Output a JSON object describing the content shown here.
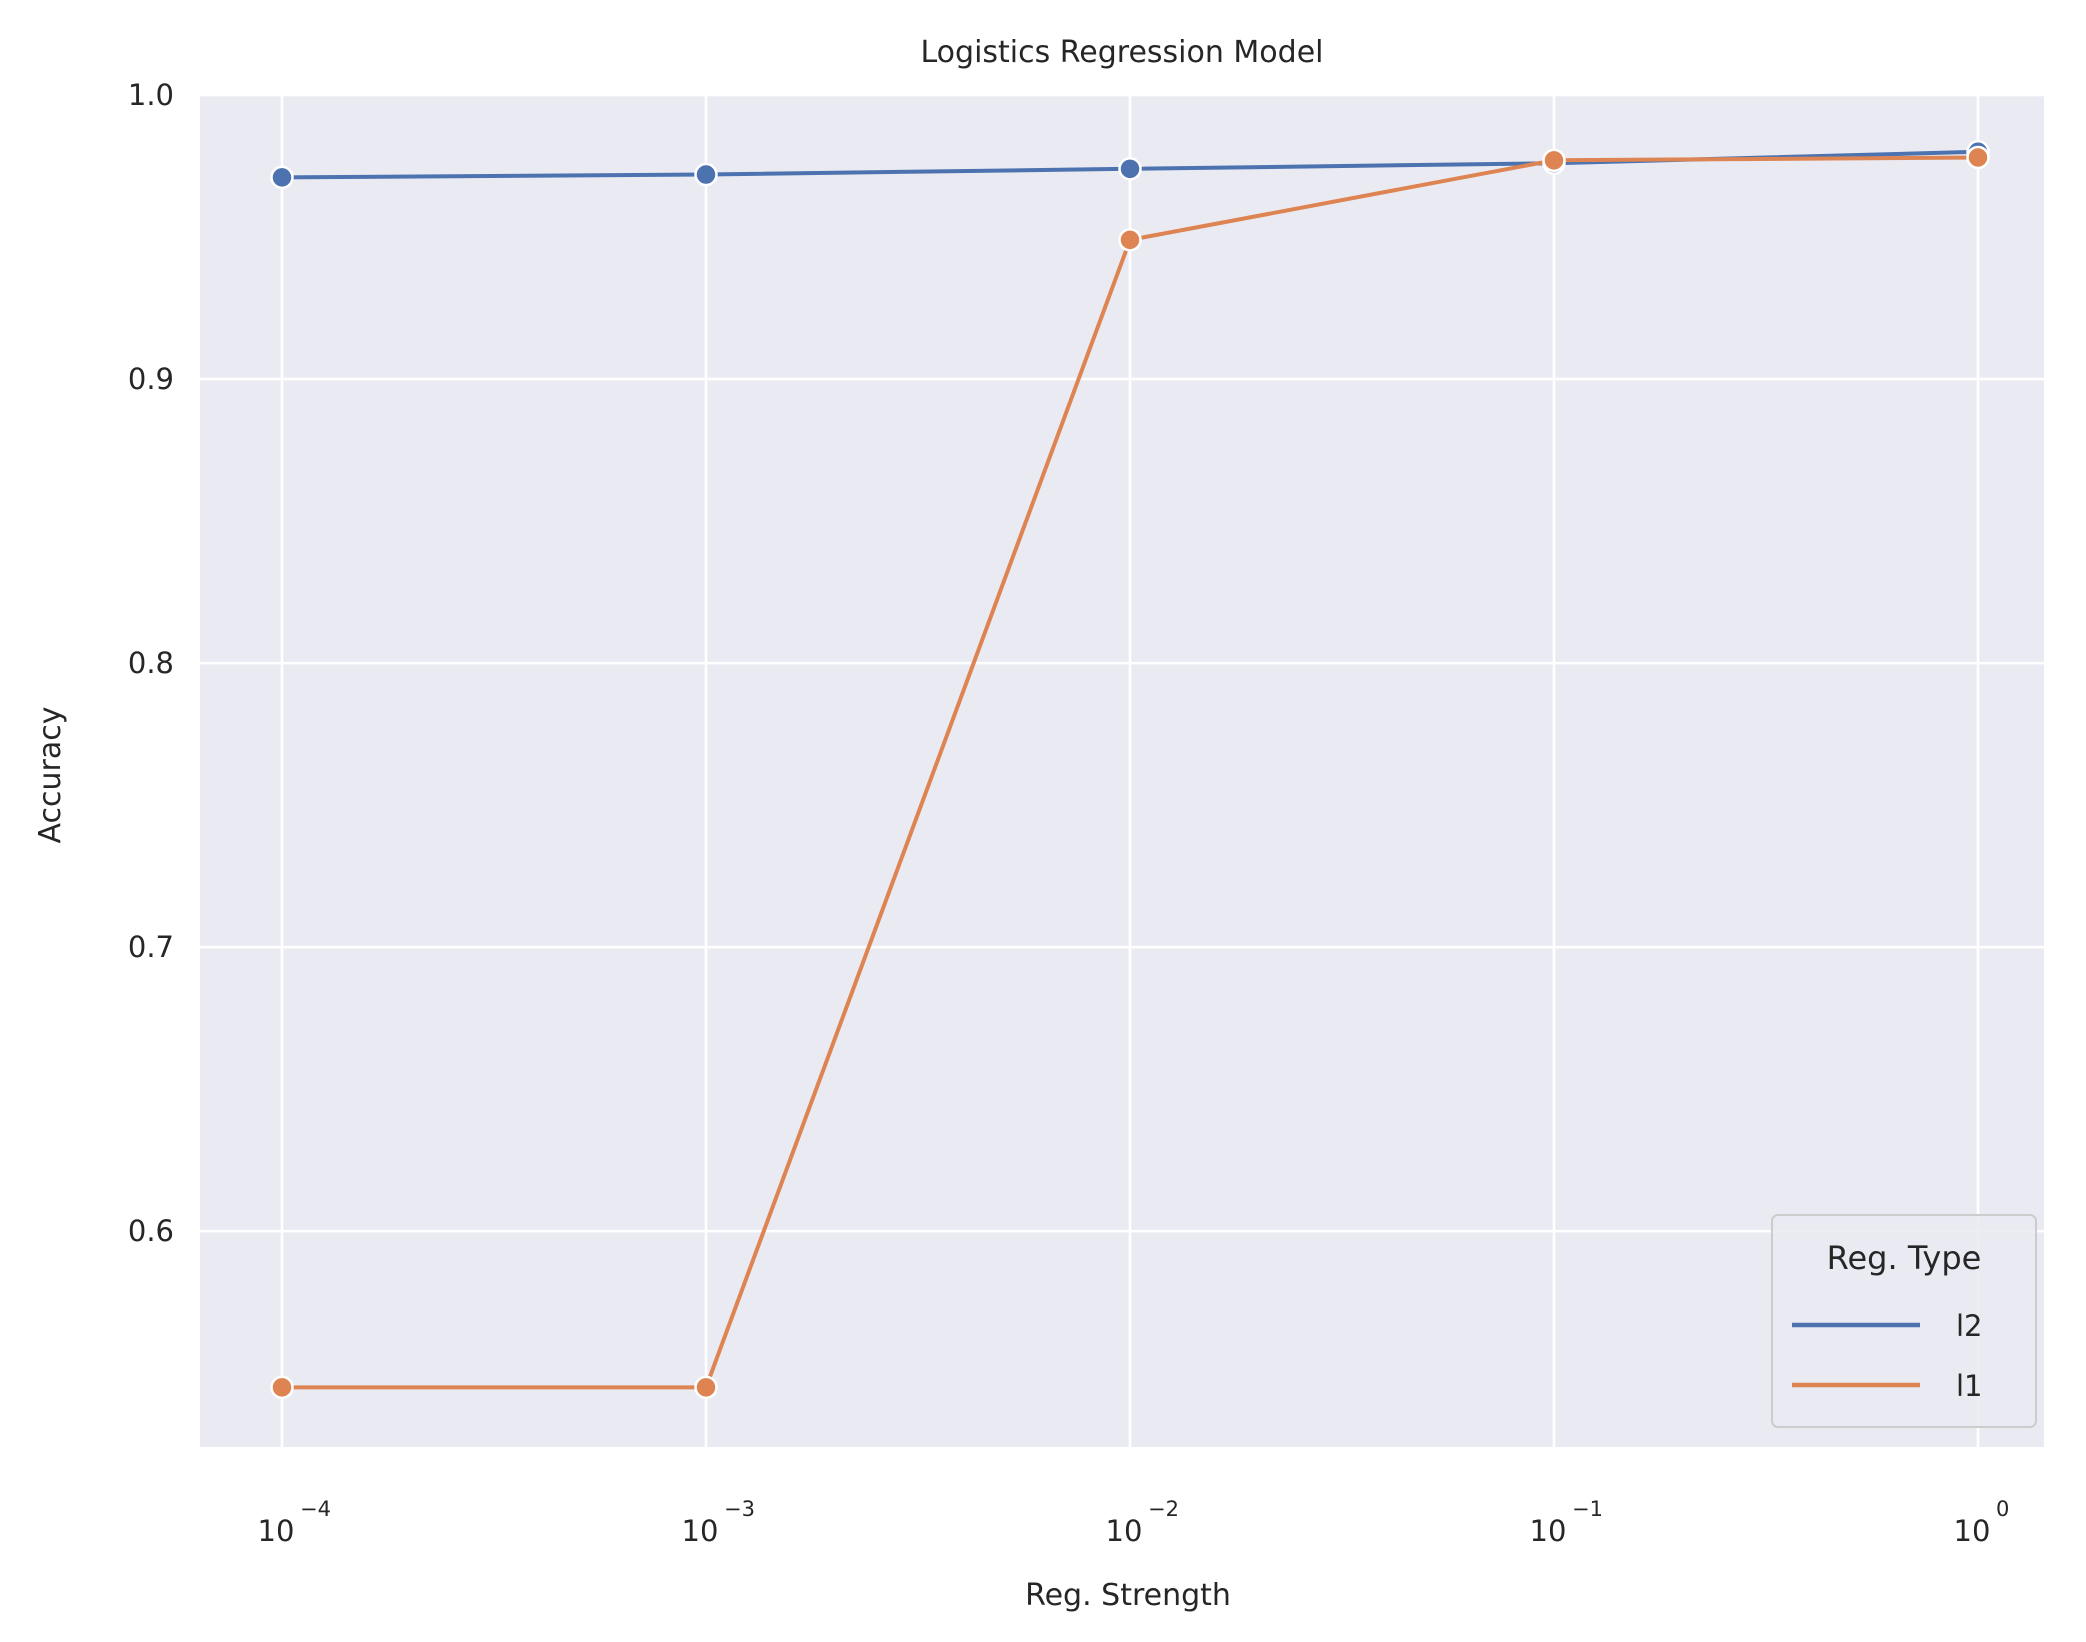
{
  "chart_data": {
    "type": "line",
    "title": "Logistics Regression Model",
    "xlabel": "Reg. Strength",
    "ylabel": "Accuracy",
    "x_scale": "log",
    "x": [
      0.0001,
      0.001,
      0.01,
      0.1,
      1
    ],
    "x_tick_labels": [
      {
        "base": "10",
        "exp": "−4"
      },
      {
        "base": "10",
        "exp": "−3"
      },
      {
        "base": "10",
        "exp": "−2"
      },
      {
        "base": "10",
        "exp": "−1"
      },
      {
        "base": "10",
        "exp": "0"
      }
    ],
    "y_ticks": [
      0.6,
      0.7,
      0.8,
      0.9,
      1.0
    ],
    "y_tick_labels": [
      "0.6",
      "0.7",
      "0.8",
      "0.9",
      "1.0"
    ],
    "ylim": [
      0.524,
      1.0
    ],
    "grid": true,
    "legend": {
      "title": "Reg. Type",
      "position": "lower-right"
    },
    "series": [
      {
        "name": "l2",
        "color": "#4c72b0",
        "values": [
          0.971,
          0.972,
          0.974,
          0.976,
          0.98
        ]
      },
      {
        "name": "l1",
        "color": "#dd8452",
        "values": [
          0.545,
          0.545,
          0.949,
          0.977,
          0.978
        ]
      }
    ]
  }
}
